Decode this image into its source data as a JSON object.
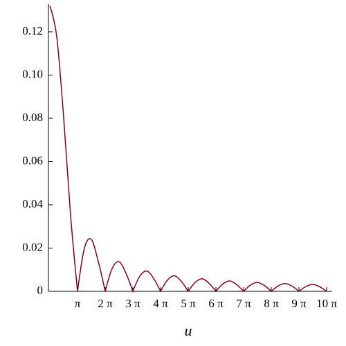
{
  "chart_data": {
    "type": "line",
    "x_label": "u",
    "x": [
      0,
      0.7854,
      1.5708,
      2.3562,
      3.1416,
      3.927,
      4.7124,
      5.4978,
      6.2832,
      7.0686,
      7.854,
      8.6394,
      9.4248,
      10.2102,
      10.9956,
      11.781,
      12.5664,
      13.3518,
      14.1372,
      14.9226,
      15.708,
      16.4934,
      17.2788,
      18.0642,
      18.8496,
      19.635,
      20.4204,
      21.2058,
      21.9911,
      22.7765,
      23.5619,
      24.3473,
      25.1327,
      25.9181,
      26.7035,
      27.4889,
      28.2743,
      29.0597,
      29.8451,
      30.6305,
      31.4159
    ],
    "series": [
      {
        "color": "#800020",
        "values": [
          0.132,
          0.1177,
          0.0803,
          0.0351,
          0,
          0.02,
          0.024,
          0.0138,
          0,
          0.0105,
          0.0137,
          0.0084,
          0,
          0.007,
          0.0094,
          0.006,
          0,
          0.0052,
          0.0072,
          0.0046,
          0,
          0.0041,
          0.0058,
          0.0037,
          0,
          0.0034,
          0.0048,
          0.0031,
          0,
          0.0029,
          0.0041,
          0.0027,
          0,
          0.0025,
          0.0036,
          0.0024,
          0,
          0.0022,
          0.0032,
          0.0021,
          0
        ]
      }
    ],
    "xlim": [
      0,
      31.4159
    ],
    "ylim": [
      0,
      0.132
    ],
    "xticks": [
      {
        "value": 3.1416,
        "label": "π"
      },
      {
        "value": 6.2832,
        "label": "2 π"
      },
      {
        "value": 9.4248,
        "label": "3 π"
      },
      {
        "value": 12.5664,
        "label": "4 π"
      },
      {
        "value": 15.708,
        "label": "5 π"
      },
      {
        "value": 18.8496,
        "label": "6 π"
      },
      {
        "value": 21.9911,
        "label": "7 π"
      },
      {
        "value": 25.1327,
        "label": "8 π"
      },
      {
        "value": 28.2743,
        "label": "9 π"
      },
      {
        "value": 31.4159,
        "label": "10 π"
      }
    ],
    "yticks": [
      0,
      0.02,
      0.04,
      0.06,
      0.08,
      {
        "value": 0.1,
        "label": "0.10"
      },
      0.12
    ]
  }
}
